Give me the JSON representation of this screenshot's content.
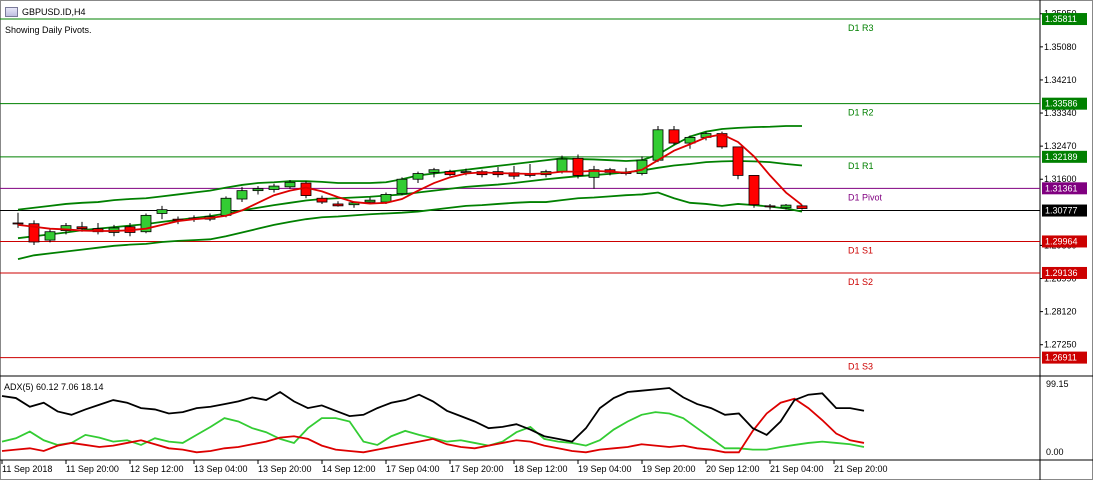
{
  "window": {
    "title": "GBPUSD.ID,H4",
    "subtitle": "Showing Daily Pivots."
  },
  "colors": {
    "up": "#33cc33",
    "down": "#ff0000",
    "r_line": "#008000",
    "pivot_line": "#800080",
    "s_line": "#cc0000",
    "ma": "#dd0000",
    "band": "#008000",
    "current": "#000000",
    "adx": "#000000",
    "pdi": "#33cc33",
    "mdi": "#dd0000"
  },
  "price_axis": {
    "ticks": [
      "1.35950",
      "1.35080",
      "1.34210",
      "1.33340",
      "1.32470",
      "1.31600",
      "1.29860",
      "1.28990",
      "1.28120",
      "1.27250"
    ],
    "range": [
      1.2648,
      1.3618
    ]
  },
  "pivots": [
    {
      "name": "R3",
      "label": "D1  R3",
      "value": "1.35811",
      "kind": "r"
    },
    {
      "name": "R2",
      "label": "D1  R2",
      "value": "1.33586",
      "kind": "r"
    },
    {
      "name": "R1",
      "label": "D1  R1",
      "value": "1.32189",
      "kind": "r"
    },
    {
      "name": "P",
      "label": "D1  Pivot",
      "value": "1.31361",
      "kind": "p"
    },
    {
      "name": "S1",
      "label": "D1  S1",
      "value": "1.29964",
      "kind": "s"
    },
    {
      "name": "S2",
      "label": "D1  S2",
      "value": "1.29136",
      "kind": "s"
    },
    {
      "name": "S3",
      "label": "D1  S3",
      "value": "1.26911",
      "kind": "s"
    }
  ],
  "current_price": "1.30777",
  "chart_data": {
    "type": "candlestick",
    "candles": [
      [
        1.3045,
        1.3072,
        1.3032,
        1.3043
      ],
      [
        1.3043,
        1.3052,
        1.2987,
        1.2995
      ],
      [
        1.3,
        1.303,
        1.2994,
        1.3022
      ],
      [
        1.3025,
        1.3045,
        1.3015,
        1.3038
      ],
      [
        1.3035,
        1.3048,
        1.3022,
        1.303
      ],
      [
        1.303,
        1.3045,
        1.3015,
        1.3022
      ],
      [
        1.302,
        1.304,
        1.301,
        1.3032
      ],
      [
        1.3035,
        1.3045,
        1.301,
        1.302
      ],
      [
        1.3022,
        1.307,
        1.3018,
        1.3065
      ],
      [
        1.307,
        1.309,
        1.3055,
        1.308
      ],
      [
        1.3055,
        1.3062,
        1.3042,
        1.3052
      ],
      [
        1.3055,
        1.3065,
        1.3048,
        1.3058
      ],
      [
        1.3055,
        1.307,
        1.305,
        1.3062
      ],
      [
        1.3065,
        1.3115,
        1.306,
        1.311
      ],
      [
        1.3108,
        1.314,
        1.31,
        1.313
      ],
      [
        1.313,
        1.3142,
        1.312,
        1.3135
      ],
      [
        1.3133,
        1.3148,
        1.3125,
        1.3142
      ],
      [
        1.314,
        1.3158,
        1.3135,
        1.3152
      ],
      [
        1.315,
        1.3155,
        1.311,
        1.3117
      ],
      [
        1.311,
        1.3117,
        1.3095,
        1.31
      ],
      [
        1.3095,
        1.3102,
        1.3088,
        1.309
      ],
      [
        1.3093,
        1.31,
        1.3085,
        1.3098
      ],
      [
        1.31,
        1.3112,
        1.3095,
        1.3105
      ],
      [
        1.31,
        1.3125,
        1.3095,
        1.312
      ],
      [
        1.3122,
        1.3165,
        1.3118,
        1.316
      ],
      [
        1.316,
        1.318,
        1.315,
        1.3175
      ],
      [
        1.3178,
        1.319,
        1.3165,
        1.3185
      ],
      [
        1.318,
        1.3185,
        1.3168,
        1.3172
      ],
      [
        1.3178,
        1.3188,
        1.317,
        1.318
      ],
      [
        1.318,
        1.3185,
        1.3165,
        1.3172
      ],
      [
        1.318,
        1.3192,
        1.3165,
        1.3172
      ],
      [
        1.3177,
        1.3195,
        1.316,
        1.3168
      ],
      [
        1.3175,
        1.32,
        1.3165,
        1.317
      ],
      [
        1.3172,
        1.3185,
        1.3165,
        1.318
      ],
      [
        1.318,
        1.3222,
        1.3175,
        1.3213
      ],
      [
        1.3215,
        1.3225,
        1.3162,
        1.317
      ],
      [
        1.3165,
        1.3195,
        1.3135,
        1.3185
      ],
      [
        1.3185,
        1.319,
        1.317,
        1.3178
      ],
      [
        1.3178,
        1.319,
        1.317,
        1.3175
      ],
      [
        1.3175,
        1.322,
        1.317,
        1.321
      ],
      [
        1.321,
        1.33,
        1.3205,
        1.329
      ],
      [
        1.329,
        1.33,
        1.325,
        1.3255
      ],
      [
        1.3255,
        1.3275,
        1.324,
        1.327
      ],
      [
        1.327,
        1.3285,
        1.3262,
        1.328
      ],
      [
        1.328,
        1.3285,
        1.324,
        1.3245
      ],
      [
        1.3245,
        1.3245,
        1.316,
        1.317
      ],
      [
        1.317,
        1.317,
        1.3085,
        1.3093
      ],
      [
        1.309,
        1.3095,
        1.308,
        1.3088
      ],
      [
        1.3085,
        1.3095,
        1.308,
        1.3092
      ],
      [
        1.309,
        1.3092,
        1.308,
        1.3083
      ]
    ],
    "ma": [
      1.304,
      1.3035,
      1.303,
      1.3028,
      1.3025,
      1.3024,
      1.3024,
      1.3026,
      1.303,
      1.304,
      1.305,
      1.3055,
      1.3058,
      1.3064,
      1.3078,
      1.3098,
      1.3118,
      1.313,
      1.3138,
      1.3128,
      1.3113,
      1.31,
      1.3096,
      1.3098,
      1.3108,
      1.313,
      1.315,
      1.3165,
      1.3175,
      1.3178,
      1.3176,
      1.3175,
      1.3174,
      1.3175,
      1.318,
      1.318,
      1.3182,
      1.318,
      1.3177,
      1.3185,
      1.321,
      1.3235,
      1.3252,
      1.327,
      1.3278,
      1.3258,
      1.322,
      1.317,
      1.3125,
      1.3092
    ],
    "bb_mid": [
      1.3005,
      1.301,
      1.3015,
      1.302,
      1.3026,
      1.303,
      1.3034,
      1.3038,
      1.3042,
      1.3048,
      1.3053,
      1.3058,
      1.3063,
      1.307,
      1.3078,
      1.3085,
      1.3092,
      1.3098,
      1.3104,
      1.3108,
      1.311,
      1.3112,
      1.3114,
      1.3117,
      1.312,
      1.3125,
      1.313,
      1.3135,
      1.314,
      1.3143,
      1.3146,
      1.315,
      1.3155,
      1.316,
      1.3164,
      1.3168,
      1.3171,
      1.3174,
      1.3178,
      1.3183,
      1.319,
      1.3196,
      1.32,
      1.3205,
      1.3207,
      1.3208,
      1.3207,
      1.3205,
      1.32,
      1.3196
    ],
    "bb_up": [
      1.308,
      1.3085,
      1.309,
      1.3095,
      1.3098,
      1.31,
      1.3105,
      1.3108,
      1.311,
      1.3115,
      1.312,
      1.3125,
      1.313,
      1.3138,
      1.3145,
      1.315,
      1.3152,
      1.3155,
      1.3155,
      1.3153,
      1.315,
      1.315,
      1.315,
      1.3152,
      1.316,
      1.317,
      1.3175,
      1.318,
      1.3185,
      1.319,
      1.3195,
      1.32,
      1.3205,
      1.321,
      1.3215,
      1.3213,
      1.3212,
      1.321,
      1.3208,
      1.321,
      1.3225,
      1.325,
      1.3272,
      1.3285,
      1.3292,
      1.3295,
      1.3297,
      1.3298,
      1.33,
      1.33
    ],
    "bb_dn": [
      1.295,
      1.296,
      1.2965,
      1.297,
      1.2975,
      1.298,
      1.2985,
      1.2988,
      1.299,
      1.2995,
      1.2998,
      1.3,
      1.3002,
      1.301,
      1.302,
      1.303,
      1.304,
      1.3048,
      1.3055,
      1.306,
      1.3062,
      1.3065,
      1.3068,
      1.307,
      1.3072,
      1.3075,
      1.308,
      1.3085,
      1.309,
      1.3092,
      1.3095,
      1.3098,
      1.31,
      1.31,
      1.3105,
      1.311,
      1.3112,
      1.3115,
      1.3118,
      1.312,
      1.3125,
      1.311,
      1.3098,
      1.3095,
      1.309,
      1.3095,
      1.3092,
      1.3088,
      1.3083,
      1.3075
    ]
  },
  "indicator": {
    "label": "ADX(5) 60.12 7.06 18.14",
    "ticks": [
      "99.15",
      "0.00"
    ],
    "adx": [
      88,
      85,
      72,
      78,
      65,
      60,
      68,
      75,
      82,
      78,
      70,
      68,
      62,
      64,
      70,
      72,
      76,
      80,
      86,
      82,
      94,
      80,
      70,
      74,
      66,
      58,
      60,
      70,
      78,
      82,
      90,
      80,
      66,
      58,
      50,
      40,
      42,
      46,
      38,
      28,
      24,
      20,
      40,
      70,
      85,
      94,
      96,
      98,
      100,
      86,
      76,
      70,
      60,
      62,
      40,
      30,
      50,
      82,
      90,
      92,
      70,
      70,
      66
    ],
    "pdi": [
      20,
      25,
      35,
      22,
      15,
      18,
      30,
      26,
      20,
      22,
      15,
      25,
      20,
      18,
      30,
      42,
      55,
      50,
      40,
      34,
      24,
      18,
      40,
      55,
      55,
      50,
      20,
      15,
      28,
      36,
      30,
      25,
      20,
      22,
      18,
      14,
      20,
      34,
      42,
      24,
      20,
      18,
      14,
      22,
      38,
      50,
      60,
      64,
      62,
      55,
      40,
      25,
      10,
      10,
      8,
      8,
      12,
      15,
      18,
      20,
      18,
      16,
      12
    ],
    "mdi": [
      6,
      8,
      10,
      6,
      14,
      18,
      15,
      12,
      14,
      18,
      22,
      16,
      10,
      8,
      4,
      6,
      10,
      12,
      16,
      20,
      26,
      28,
      24,
      14,
      8,
      6,
      4,
      8,
      12,
      16,
      20,
      24,
      16,
      12,
      10,
      14,
      18,
      22,
      20,
      14,
      10,
      6,
      4,
      8,
      10,
      12,
      16,
      14,
      12,
      14,
      10,
      8,
      4,
      4,
      36,
      62,
      78,
      84,
      70,
      52,
      32,
      22,
      18
    ]
  },
  "time_axis": [
    "11 Sep 2018",
    "11 Sep 20:00",
    "12 Sep 12:00",
    "13 Sep 04:00",
    "13 Sep 20:00",
    "14 Sep 12:00",
    "17 Sep 04:00",
    "17 Sep 20:00",
    "18 Sep 12:00",
    "19 Sep 04:00",
    "19 Sep 20:00",
    "20 Sep 12:00",
    "21 Sep 04:00",
    "21 Sep 20:00"
  ]
}
